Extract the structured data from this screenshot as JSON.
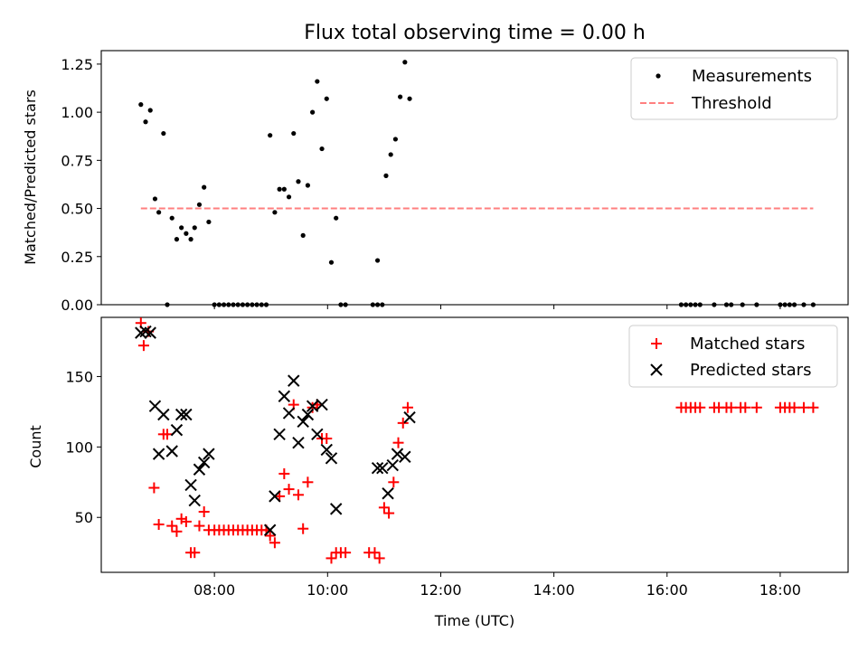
{
  "chart_data": [
    {
      "type": "scatter",
      "title": "Flux total observing time = 0.00 h",
      "xlabel": "",
      "ylabel": "Matched/Predicted stars",
      "xlim": [
        "06:00",
        "19:12"
      ],
      "ylim": [
        0,
        1.32
      ],
      "yticks": [
        0,
        0.25,
        0.5,
        0.75,
        1.0,
        1.25
      ],
      "ytick_labels": [
        "0.00",
        "0.25",
        "0.50",
        "0.75",
        "1.00",
        "1.25"
      ],
      "legend_placement": "top-right",
      "legend": [
        "Measurements",
        "Threshold"
      ],
      "series": [
        {
          "name": "Measurements",
          "color": "#000000",
          "marker": "dot",
          "points": [
            [
              "06:42",
              1.04
            ],
            [
              "06:47",
              0.95
            ],
            [
              "06:52",
              1.01
            ],
            [
              "06:57",
              0.55
            ],
            [
              "07:01",
              0.48
            ],
            [
              "07:06",
              0.89
            ],
            [
              "07:10",
              0.0
            ],
            [
              "07:15",
              0.45
            ],
            [
              "07:20",
              0.34
            ],
            [
              "07:25",
              0.4
            ],
            [
              "07:30",
              0.37
            ],
            [
              "07:35",
              0.34
            ],
            [
              "07:39",
              0.4
            ],
            [
              "07:44",
              0.52
            ],
            [
              "07:49",
              0.61
            ],
            [
              "07:54",
              0.43
            ],
            [
              "08:00",
              0.0
            ],
            [
              "08:05",
              0.0
            ],
            [
              "08:10",
              0.0
            ],
            [
              "08:15",
              0.0
            ],
            [
              "08:20",
              0.0
            ],
            [
              "08:25",
              0.0
            ],
            [
              "08:30",
              0.0
            ],
            [
              "08:35",
              0.0
            ],
            [
              "08:40",
              0.0
            ],
            [
              "08:45",
              0.0
            ],
            [
              "08:50",
              0.0
            ],
            [
              "08:55",
              0.0
            ],
            [
              "08:59",
              0.88
            ],
            [
              "09:04",
              0.48
            ],
            [
              "09:09",
              0.6
            ],
            [
              "09:14",
              0.6
            ],
            [
              "09:19",
              0.56
            ],
            [
              "09:24",
              0.89
            ],
            [
              "09:29",
              0.64
            ],
            [
              "09:34",
              0.36
            ],
            [
              "09:39",
              0.62
            ],
            [
              "09:44",
              1.0
            ],
            [
              "09:49",
              1.16
            ],
            [
              "09:54",
              0.81
            ],
            [
              "09:59",
              1.07
            ],
            [
              "10:04",
              0.22
            ],
            [
              "10:09",
              0.45
            ],
            [
              "10:14",
              0.0
            ],
            [
              "10:19",
              0.0
            ],
            [
              "10:48",
              0.0
            ],
            [
              "10:53",
              0.0
            ],
            [
              "10:58",
              0.0
            ],
            [
              "10:53",
              0.23
            ],
            [
              "11:02",
              0.67
            ],
            [
              "11:07",
              0.78
            ],
            [
              "11:12",
              0.86
            ],
            [
              "11:17",
              1.08
            ],
            [
              "11:22",
              1.26
            ],
            [
              "11:27",
              1.07
            ],
            [
              "16:15",
              0.0
            ],
            [
              "16:20",
              0.0
            ],
            [
              "16:25",
              0.0
            ],
            [
              "16:30",
              0.0
            ],
            [
              "16:35",
              0.0
            ],
            [
              "16:50",
              0.0
            ],
            [
              "17:03",
              0.0
            ],
            [
              "17:08",
              0.0
            ],
            [
              "17:20",
              0.0
            ],
            [
              "17:35",
              0.0
            ],
            [
              "18:00",
              0.0
            ],
            [
              "18:05",
              0.0
            ],
            [
              "18:10",
              0.0
            ],
            [
              "18:15",
              0.0
            ],
            [
              "18:25",
              0.0
            ],
            [
              "18:35",
              0.0
            ]
          ]
        },
        {
          "name": "Threshold",
          "color": "#ff7f7f",
          "style": "dashed",
          "points": [
            [
              "06:42",
              0.5
            ],
            [
              "18:35",
              0.5
            ]
          ]
        }
      ]
    },
    {
      "type": "scatter",
      "title": "",
      "xlabel": "Time (UTC)",
      "ylabel": "Count",
      "xlim": [
        "06:00",
        "19:12"
      ],
      "ylim": [
        11,
        192
      ],
      "xticks": [
        "08:00",
        "10:00",
        "12:00",
        "14:00",
        "16:00",
        "18:00"
      ],
      "yticks": [
        50,
        100,
        150
      ],
      "ytick_labels": [
        "50",
        "100",
        "150"
      ],
      "legend_placement": "top-right",
      "legend": [
        "Matched stars",
        "Predicted stars"
      ],
      "series": [
        {
          "name": "Matched stars",
          "color": "#ff0000",
          "marker": "plus",
          "points": [
            [
              "06:42",
              188
            ],
            [
              "06:45",
              172
            ],
            [
              "06:50",
              182
            ],
            [
              "06:56",
              71
            ],
            [
              "07:01",
              45
            ],
            [
              "07:06",
              109
            ],
            [
              "07:10",
              109
            ],
            [
              "07:15",
              44
            ],
            [
              "07:20",
              40
            ],
            [
              "07:25",
              49
            ],
            [
              "07:30",
              47
            ],
            [
              "07:35",
              25
            ],
            [
              "07:39",
              25
            ],
            [
              "07:44",
              44
            ],
            [
              "07:49",
              54
            ],
            [
              "07:54",
              41
            ],
            [
              "08:00",
              41
            ],
            [
              "08:05",
              41
            ],
            [
              "08:10",
              41
            ],
            [
              "08:15",
              41
            ],
            [
              "08:20",
              41
            ],
            [
              "08:25",
              41
            ],
            [
              "08:30",
              41
            ],
            [
              "08:35",
              41
            ],
            [
              "08:40",
              41
            ],
            [
              "08:45",
              41
            ],
            [
              "08:50",
              41
            ],
            [
              "08:55",
              41
            ],
            [
              "08:59",
              37
            ],
            [
              "09:04",
              32
            ],
            [
              "09:09",
              65
            ],
            [
              "09:14",
              81
            ],
            [
              "09:19",
              70
            ],
            [
              "09:24",
              130
            ],
            [
              "09:29",
              66
            ],
            [
              "09:34",
              42
            ],
            [
              "09:39",
              75
            ],
            [
              "09:44",
              128
            ],
            [
              "09:49",
              130
            ],
            [
              "09:54",
              106
            ],
            [
              "09:59",
              106
            ],
            [
              "10:04",
              21
            ],
            [
              "10:09",
              25
            ],
            [
              "10:14",
              25
            ],
            [
              "10:19",
              25
            ],
            [
              "10:44",
              25
            ],
            [
              "10:50",
              25
            ],
            [
              "10:55",
              21
            ],
            [
              "11:00",
              57
            ],
            [
              "11:05",
              53
            ],
            [
              "11:10",
              75
            ],
            [
              "11:15",
              103
            ],
            [
              "11:20",
              117
            ],
            [
              "11:25",
              128
            ],
            [
              "16:15",
              128
            ],
            [
              "16:20",
              128
            ],
            [
              "16:25",
              128
            ],
            [
              "16:30",
              128
            ],
            [
              "16:35",
              128
            ],
            [
              "16:50",
              128
            ],
            [
              "16:55",
              128
            ],
            [
              "17:03",
              128
            ],
            [
              "17:08",
              128
            ],
            [
              "17:18",
              128
            ],
            [
              "17:23",
              128
            ],
            [
              "17:35",
              128
            ],
            [
              "18:00",
              128
            ],
            [
              "18:05",
              128
            ],
            [
              "18:10",
              128
            ],
            [
              "18:15",
              128
            ],
            [
              "18:25",
              128
            ],
            [
              "18:35",
              128
            ]
          ]
        },
        {
          "name": "Predicted stars",
          "color": "#000000",
          "marker": "x",
          "points": [
            [
              "06:42",
              181
            ],
            [
              "06:47",
              182
            ],
            [
              "06:52",
              181
            ],
            [
              "06:57",
              129
            ],
            [
              "07:01",
              95
            ],
            [
              "07:06",
              123
            ],
            [
              "07:15",
              97
            ],
            [
              "07:20",
              112
            ],
            [
              "07:25",
              123
            ],
            [
              "07:30",
              123
            ],
            [
              "07:35",
              73
            ],
            [
              "07:39",
              62
            ],
            [
              "07:44",
              84
            ],
            [
              "07:49",
              89
            ],
            [
              "07:54",
              95
            ],
            [
              "08:59",
              41
            ],
            [
              "09:04",
              65
            ],
            [
              "09:09",
              109
            ],
            [
              "09:14",
              136
            ],
            [
              "09:19",
              124
            ],
            [
              "09:24",
              147
            ],
            [
              "09:29",
              103
            ],
            [
              "09:34",
              118
            ],
            [
              "09:39",
              123
            ],
            [
              "09:44",
              129
            ],
            [
              "09:49",
              109
            ],
            [
              "09:54",
              130
            ],
            [
              "09:59",
              98
            ],
            [
              "10:04",
              92
            ],
            [
              "10:09",
              56
            ],
            [
              "10:53",
              85
            ],
            [
              "10:58",
              85
            ],
            [
              "11:04",
              67
            ],
            [
              "11:09",
              87
            ],
            [
              "11:14",
              95
            ],
            [
              "11:22",
              93
            ],
            [
              "11:27",
              121
            ]
          ]
        }
      ]
    }
  ]
}
